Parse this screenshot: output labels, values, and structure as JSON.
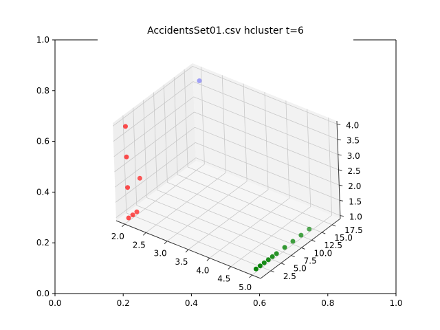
{
  "chart_data": {
    "type": "scatter",
    "title": "AccidentsSet01.csv hcluster t=6",
    "outer_axes": {
      "x_ticks": [
        "0.0",
        "0.2",
        "0.4",
        "0.6",
        "0.8",
        "1.0"
      ],
      "y_ticks": [
        "0.0",
        "0.2",
        "0.4",
        "0.6",
        "0.8",
        "1.0"
      ],
      "xlim": [
        0,
        1
      ],
      "ylim": [
        0,
        1
      ]
    },
    "axes3d": {
      "x_ticks": [
        "2.0",
        "2.5",
        "3.0",
        "3.5",
        "4.0",
        "4.5",
        "5.0"
      ],
      "y_ticks": [
        "2.5",
        "5.0",
        "7.5",
        "10.0",
        "12.5",
        "15.0",
        "17.5"
      ],
      "z_ticks": [
        "1.0",
        "1.5",
        "2.0",
        "2.5",
        "3.0",
        "3.5",
        "4.0"
      ],
      "xlim": [
        1.8,
        5.2
      ],
      "ylim": [
        0.0,
        19.5
      ],
      "zlim": [
        0.9,
        4.1
      ],
      "grid": true
    },
    "series": [
      {
        "color": "#ff0000",
        "points": [
          {
            "x": 2,
            "y": 1,
            "z": 1
          },
          {
            "x": 2,
            "y": 2,
            "z": 1
          },
          {
            "x": 2,
            "y": 3,
            "z": 1
          },
          {
            "x": 2,
            "y": 1,
            "z": 2
          },
          {
            "x": 2,
            "y": 4,
            "z": 2
          },
          {
            "x": 2,
            "y": 1,
            "z": 3
          },
          {
            "x": 2,
            "y": 1,
            "z": 4
          }
        ]
      },
      {
        "color": "#0000ff",
        "points": [
          {
            "x": 2.2,
            "y": 17,
            "z": 4
          }
        ]
      },
      {
        "color": "#008000",
        "points": [
          {
            "x": 5,
            "y": 1,
            "z": 1
          },
          {
            "x": 5,
            "y": 2,
            "z": 1
          },
          {
            "x": 5,
            "y": 3,
            "z": 1
          },
          {
            "x": 5,
            "y": 4,
            "z": 1
          },
          {
            "x": 5,
            "y": 5,
            "z": 1
          },
          {
            "x": 5,
            "y": 6,
            "z": 1
          },
          {
            "x": 5,
            "y": 8,
            "z": 1
          },
          {
            "x": 5,
            "y": 10,
            "z": 1
          },
          {
            "x": 5,
            "y": 12,
            "z": 1
          },
          {
            "x": 5,
            "y": 14,
            "z": 1
          }
        ]
      }
    ]
  }
}
